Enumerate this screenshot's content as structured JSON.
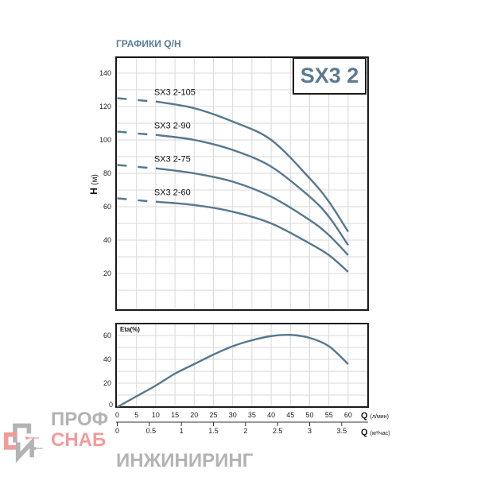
{
  "title": "ГРАФИКИ Q/H",
  "model_box": "SX3 2",
  "colors": {
    "curve": "#56788f",
    "title": "#5b7a91",
    "frame": "#1a1a1a",
    "logo_gray": "#a6a6a6",
    "logo_red": "#f08a8a"
  },
  "chart_data": [
    {
      "type": "line",
      "ylabel": "H (м)",
      "ylim": [
        0,
        150
      ],
      "xlim": [
        0,
        65
      ],
      "yticks": [
        20,
        40,
        60,
        80,
        100,
        120,
        140
      ],
      "grid": true,
      "series": [
        {
          "name": "SX3 2-105",
          "dashed_start": [
            0,
            125
          ],
          "x": [
            10,
            20,
            30,
            40,
            50,
            55,
            60
          ],
          "y": [
            123,
            119,
            111,
            100,
            77,
            63,
            45
          ]
        },
        {
          "name": "SX3 2-90",
          "dashed_start": [
            0,
            105
          ],
          "x": [
            10,
            20,
            30,
            40,
            50,
            55,
            60
          ],
          "y": [
            103,
            100,
            94,
            84,
            66,
            54,
            37
          ]
        },
        {
          "name": "SX3 2-75",
          "dashed_start": [
            0,
            85
          ],
          "x": [
            10,
            20,
            30,
            40,
            50,
            55,
            60
          ],
          "y": [
            83,
            80,
            75,
            66,
            52,
            43,
            31
          ]
        },
        {
          "name": "SX3 2-60",
          "dashed_start": [
            0,
            65
          ],
          "x": [
            10,
            20,
            30,
            40,
            50,
            55,
            60
          ],
          "y": [
            63,
            61,
            57,
            50,
            38,
            31,
            21
          ]
        }
      ]
    },
    {
      "type": "line",
      "ylabel": "Eta(%)",
      "ylim": [
        0,
        70
      ],
      "yticks": [
        0,
        20,
        40,
        60
      ],
      "grid": true,
      "series": [
        {
          "x": [
            0,
            5,
            10,
            15,
            20,
            25,
            30,
            35,
            40,
            45,
            50,
            55,
            60
          ],
          "y": [
            0,
            9,
            18,
            28,
            36,
            44,
            51,
            56,
            59.5,
            60.5,
            58,
            51,
            36
          ]
        }
      ],
      "xaxis_primary": {
        "label": "Q",
        "unit": "(л/мин)",
        "ticks": [
          0,
          5,
          10,
          15,
          20,
          25,
          30,
          35,
          40,
          45,
          50,
          55,
          60
        ]
      },
      "xaxis_secondary": {
        "label": "Q",
        "unit": "(м³/час)",
        "ticks": [
          0,
          0.5,
          1,
          1.5,
          2,
          2.5,
          3,
          3.5
        ]
      }
    }
  ],
  "logo": {
    "line1": "ПРОФ",
    "line2": "СНАБ",
    "line3": "ИНЖИНИРИНГ"
  }
}
